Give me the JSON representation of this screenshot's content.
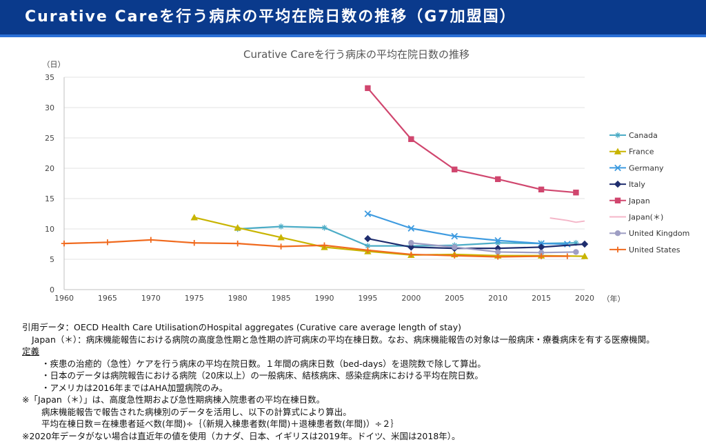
{
  "header": {
    "title": "Curative Careを行う病床の平均在院日数の推移（G7加盟国）"
  },
  "chart_data": {
    "type": "line",
    "title": "Curative Careを行う病床の平均在院日数の推移",
    "ylabel": "（日）",
    "xlabel": "（年）",
    "ylim": [
      0,
      35
    ],
    "yticks": [
      0,
      5,
      10,
      15,
      20,
      25,
      30,
      35
    ],
    "xlim": [
      1960,
      2020
    ],
    "xticks": [
      1960,
      1965,
      1970,
      1975,
      1980,
      1985,
      1990,
      1995,
      2000,
      2005,
      2010,
      2015,
      2020
    ],
    "legend_position": "right",
    "series": [
      {
        "name": "Canada",
        "color": "#4bacc6",
        "marker": "star",
        "points": [
          [
            1980,
            10.0
          ],
          [
            1985,
            10.4
          ],
          [
            1990,
            10.2
          ],
          [
            1995,
            7.2
          ],
          [
            2000,
            7.2
          ],
          [
            2005,
            7.3
          ],
          [
            2010,
            7.7
          ],
          [
            2015,
            7.6
          ],
          [
            2019,
            7.7
          ]
        ]
      },
      {
        "name": "France",
        "color": "#c8b400",
        "marker": "triangle",
        "points": [
          [
            1975,
            11.9
          ],
          [
            1980,
            10.2
          ],
          [
            1985,
            8.6
          ],
          [
            1990,
            7.0
          ],
          [
            1995,
            6.3
          ],
          [
            2000,
            5.7
          ],
          [
            2005,
            5.8
          ],
          [
            2010,
            5.6
          ],
          [
            2015,
            5.6
          ],
          [
            2020,
            5.5
          ]
        ]
      },
      {
        "name": "Germany",
        "color": "#3e9be0",
        "marker": "x",
        "points": [
          [
            1995,
            12.5
          ],
          [
            2000,
            10.1
          ],
          [
            2005,
            8.8
          ],
          [
            2010,
            8.1
          ],
          [
            2015,
            7.6
          ],
          [
            2018,
            7.5
          ]
        ]
      },
      {
        "name": "Italy",
        "color": "#1f2d6e",
        "marker": "diamond",
        "points": [
          [
            1995,
            8.4
          ],
          [
            2000,
            7.0
          ],
          [
            2005,
            6.8
          ],
          [
            2010,
            6.8
          ],
          [
            2015,
            7.0
          ],
          [
            2020,
            7.5
          ]
        ]
      },
      {
        "name": "Japan",
        "color": "#d0466e",
        "marker": "square",
        "points": [
          [
            1995,
            33.2
          ],
          [
            2000,
            24.8
          ],
          [
            2005,
            19.8
          ],
          [
            2010,
            18.2
          ],
          [
            2015,
            16.5
          ],
          [
            2019,
            16.0
          ]
        ]
      },
      {
        "name": "Japan(＊)",
        "color": "#f4b6c8",
        "marker": "none",
        "points": [
          [
            2016,
            11.8
          ],
          [
            2017,
            11.6
          ],
          [
            2018,
            11.4
          ],
          [
            2019,
            11.1
          ],
          [
            2020,
            11.3
          ]
        ]
      },
      {
        "name": "United Kingdom",
        "color": "#9e9ec4",
        "marker": "circle",
        "points": [
          [
            2000,
            7.7
          ],
          [
            2005,
            7.0
          ],
          [
            2010,
            6.2
          ],
          [
            2015,
            6.1
          ],
          [
            2019,
            6.2
          ]
        ]
      },
      {
        "name": "United States",
        "color": "#f06a1e",
        "marker": "plus",
        "points": [
          [
            1960,
            7.6
          ],
          [
            1965,
            7.8
          ],
          [
            1970,
            8.2
          ],
          [
            1975,
            7.7
          ],
          [
            1980,
            7.6
          ],
          [
            1985,
            7.1
          ],
          [
            1990,
            7.3
          ],
          [
            1995,
            6.5
          ],
          [
            2000,
            5.8
          ],
          [
            2005,
            5.6
          ],
          [
            2010,
            5.4
          ],
          [
            2015,
            5.5
          ],
          [
            2018,
            5.5
          ]
        ]
      }
    ]
  },
  "notes": {
    "line1": "引用データ：OECD Health Care UtilisationのHospital aggregates (Curative care average length of stay)",
    "line2": "Japan（＊）：病床機能報告における病院の高度急性期と急性期の許可病床の平均在棟日数。なお、病床機能報告の対象は一般病床・療養病床を有する医療機関。",
    "definition_heading": "定義",
    "def1": "・疾患の治癒的（急性）ケアを行う病床の平均在院日数。１年間の病床日数（bed-days）を退院数で除して算出。",
    "def2": "・日本のデータは病院報告における病院（20床以上）の一般病床、結核病床、感染症病床における平均在院日数。",
    "def3": "・アメリカは2016年まではAHA加盟病院のみ。",
    "note1": "※「Japan（＊）」は、高度急性期および急性期病棟入院患者の平均在棟日数。",
    "note1a": "病床機能報告で報告された病棟別のデータを活用し、以下の計算式により算出。",
    "note1b": "平均在棟日数＝在棟患者延べ数(年間)÷｛（新規入棟患者数(年間)＋退棟患者数(年間)）÷２｝",
    "note2": "※2020年データがない場合は直近年の値を使用（カナダ、日本、イギリスは2019年。ドイツ、米国は2018年）。"
  }
}
